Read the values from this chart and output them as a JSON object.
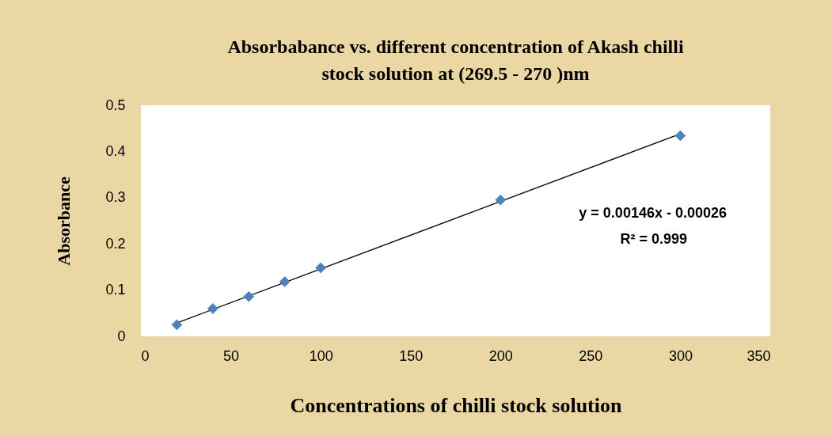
{
  "chart_data": {
    "type": "scatter",
    "title": "Absorbabance  vs. different concentration of Akash chilli stock solution at (269.5 - 270 )nm",
    "xlabel": "Concentrations of chilli stock solution",
    "ylabel": "Absorbance",
    "xlim": [
      0,
      350
    ],
    "xticks": [
      0,
      50,
      100,
      150,
      200,
      250,
      300,
      350
    ],
    "ylim": [
      0,
      0.5
    ],
    "yticks": [
      0,
      0.1,
      0.2,
      0.3,
      0.4,
      0.5
    ],
    "grid": false,
    "marker": "diamond",
    "series": [
      {
        "color": "#4f81bd",
        "x": [
          20,
          40,
          60,
          80,
          100,
          200,
          300
        ],
        "values": [
          0.025,
          0.06,
          0.086,
          0.118,
          0.148,
          0.295,
          0.434
        ]
      },
      {
        "type": "line",
        "marker": "none",
        "color": "#000000",
        "x": [
          20,
          300
        ],
        "values": [
          0.029,
          0.438
        ]
      }
    ],
    "annotations": [
      "y = 0.00146x - 0.00026",
      "R² = 0.999"
    ]
  }
}
